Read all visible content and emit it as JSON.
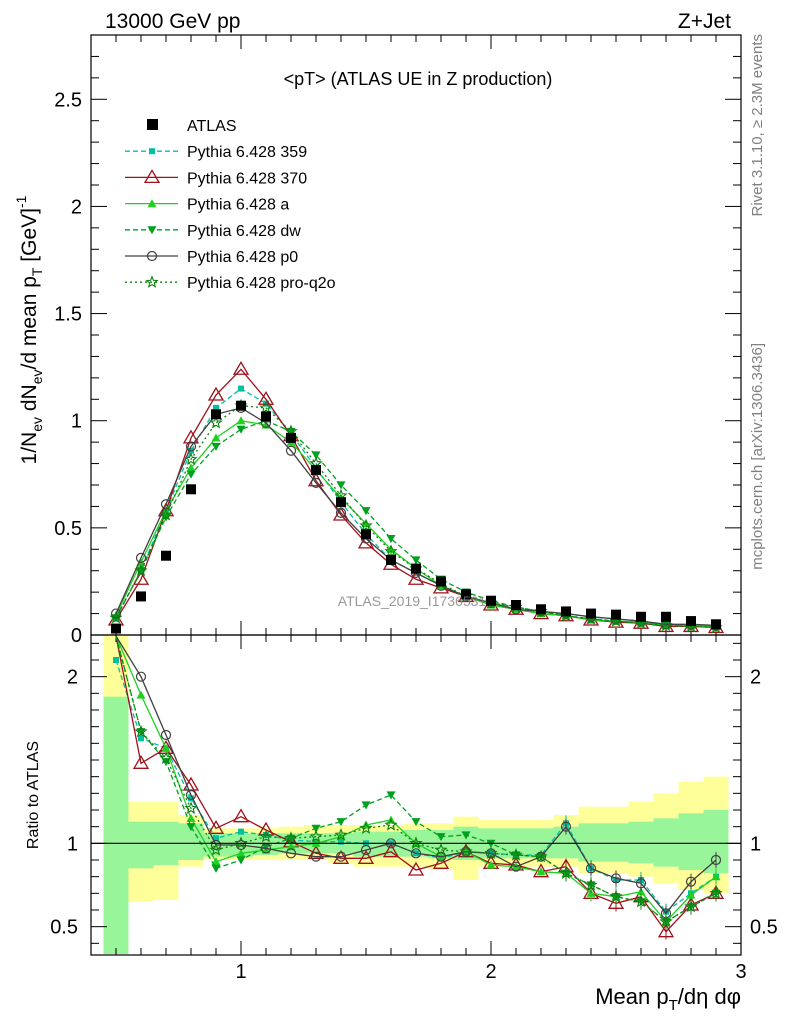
{
  "header": {
    "left": "13000 GeV pp",
    "right": "Z+Jet"
  },
  "side_text": {
    "rivet": "Rivet 3.1.10, ≥ 2.3M events",
    "mcplots": "mcplots.cern.ch [arXiv:1306.3436]"
  },
  "chart_data": {
    "type": "line",
    "title": "<pT> (ATLAS UE in Z production)",
    "watermark": "ATLAS_2019_I1736531",
    "x": [
      0.5,
      0.6,
      0.7,
      0.8,
      0.9,
      1.0,
      1.1,
      1.2,
      1.3,
      1.4,
      1.5,
      1.6,
      1.7,
      1.8,
      1.9,
      2.0,
      2.1,
      2.2,
      2.3,
      2.4,
      2.5,
      2.6,
      2.7,
      2.8,
      2.9
    ],
    "xlim": [
      0.4,
      3.0
    ],
    "xlabel": "Mean p_T/dη dφ",
    "xticks": [
      "1",
      "2",
      "3"
    ],
    "main": {
      "ylabel": "1/N_ev dN_ev/d mean p_T [GeV]^-1",
      "ylim": [
        0,
        2.8
      ],
      "yticks": [
        "0",
        "0.5",
        "1",
        "1.5",
        "2",
        "2.5"
      ],
      "data": {
        "name": "ATLAS",
        "values": [
          0.03,
          0.18,
          0.37,
          0.68,
          1.03,
          1.07,
          1.02,
          0.92,
          0.77,
          0.62,
          0.47,
          0.35,
          0.31,
          0.25,
          0.19,
          0.16,
          0.14,
          0.12,
          0.11,
          0.1,
          0.095,
          0.085,
          0.085,
          0.065,
          0.05
        ]
      },
      "series": [
        {
          "name": "Pythia 6.428 359",
          "color": "#00c0a0",
          "dash": "5,3",
          "marker": "square",
          "values": [
            0.08,
            0.3,
            0.58,
            0.86,
            1.06,
            1.15,
            1.08,
            0.94,
            0.78,
            0.62,
            0.47,
            0.35,
            0.29,
            0.23,
            0.18,
            0.15,
            0.13,
            0.11,
            0.1,
            0.085,
            0.075,
            0.065,
            0.05,
            0.045,
            0.04
          ]
        },
        {
          "name": "Pythia 6.428 370",
          "color": "#a0101a",
          "dash": "",
          "marker": "triangle-open",
          "values": [
            0.07,
            0.26,
            0.58,
            0.92,
            1.12,
            1.24,
            1.1,
            0.93,
            0.72,
            0.56,
            0.43,
            0.33,
            0.26,
            0.22,
            0.18,
            0.14,
            0.12,
            0.1,
            0.09,
            0.07,
            0.06,
            0.055,
            0.04,
            0.04,
            0.035
          ]
        },
        {
          "name": "Pythia 6.428 a",
          "color": "#20d020",
          "dash": "",
          "marker": "triangle",
          "values": [
            0.09,
            0.34,
            0.58,
            0.78,
            0.92,
            1.0,
            0.98,
            0.9,
            0.77,
            0.64,
            0.52,
            0.4,
            0.31,
            0.23,
            0.18,
            0.14,
            0.12,
            0.1,
            0.09,
            0.07,
            0.065,
            0.06,
            0.045,
            0.045,
            0.04
          ]
        },
        {
          "name": "Pythia 6.428 dw",
          "color": "#00a020",
          "dash": "5,3",
          "marker": "triangle-down",
          "values": [
            0.08,
            0.3,
            0.55,
            0.75,
            0.88,
            0.96,
            1.0,
            0.95,
            0.84,
            0.7,
            0.58,
            0.45,
            0.35,
            0.26,
            0.2,
            0.16,
            0.13,
            0.11,
            0.09,
            0.075,
            0.065,
            0.055,
            0.045,
            0.04,
            0.035
          ]
        },
        {
          "name": "Pythia 6.428 p0",
          "color": "#404040",
          "dash": "",
          "marker": "circle-open",
          "values": [
            0.1,
            0.36,
            0.61,
            0.88,
            1.03,
            1.06,
            0.99,
            0.86,
            0.71,
            0.57,
            0.45,
            0.35,
            0.29,
            0.23,
            0.18,
            0.15,
            0.12,
            0.11,
            0.1,
            0.085,
            0.075,
            0.065,
            0.05,
            0.05,
            0.045
          ]
        },
        {
          "name": "Pythia 6.428 pro-q2o",
          "color": "#108010",
          "dash": "2,3",
          "marker": "star",
          "values": [
            0.08,
            0.3,
            0.56,
            0.82,
            0.99,
            1.07,
            1.06,
            0.95,
            0.8,
            0.65,
            0.51,
            0.39,
            0.31,
            0.24,
            0.18,
            0.15,
            0.13,
            0.11,
            0.09,
            0.075,
            0.065,
            0.055,
            0.045,
            0.04,
            0.035
          ]
        }
      ]
    },
    "ratio": {
      "ylabel": "Ratio to ATLAS",
      "ylim": [
        0.33,
        2.25
      ],
      "yticks": [
        "0.5",
        "1",
        "2"
      ],
      "band_inner": [
        [
          0.1,
          1.88
        ],
        [
          0.85,
          1.13
        ],
        [
          0.87,
          1.13
        ],
        [
          0.9,
          1.12
        ],
        [
          0.92,
          1.06
        ],
        [
          0.92,
          1.06
        ],
        [
          0.93,
          1.06
        ],
        [
          0.94,
          1.06
        ],
        [
          0.94,
          1.06
        ],
        [
          0.94,
          1.06
        ],
        [
          0.92,
          1.07
        ],
        [
          0.92,
          1.07
        ],
        [
          0.92,
          1.08
        ],
        [
          0.91,
          1.08
        ],
        [
          0.9,
          1.1
        ],
        [
          0.91,
          1.09
        ],
        [
          0.91,
          1.09
        ],
        [
          0.91,
          1.09
        ],
        [
          0.91,
          1.1
        ],
        [
          0.89,
          1.12
        ],
        [
          0.89,
          1.12
        ],
        [
          0.88,
          1.13
        ],
        [
          0.86,
          1.15
        ],
        [
          0.84,
          1.18
        ],
        [
          0.82,
          1.2
        ]
      ],
      "band_outer": [
        [
          0.1,
          2.3
        ],
        [
          0.65,
          1.25
        ],
        [
          0.66,
          1.25
        ],
        [
          0.86,
          1.17
        ],
        [
          0.9,
          1.09
        ],
        [
          0.9,
          1.09
        ],
        [
          0.9,
          1.09
        ],
        [
          0.9,
          1.1
        ],
        [
          0.9,
          1.11
        ],
        [
          0.88,
          1.11
        ],
        [
          0.86,
          1.11
        ],
        [
          0.86,
          1.11
        ],
        [
          0.86,
          1.12
        ],
        [
          0.84,
          1.12
        ],
        [
          0.78,
          1.16
        ],
        [
          0.86,
          1.14
        ],
        [
          0.86,
          1.14
        ],
        [
          0.86,
          1.14
        ],
        [
          0.86,
          1.17
        ],
        [
          0.82,
          1.22
        ],
        [
          0.82,
          1.22
        ],
        [
          0.8,
          1.25
        ],
        [
          0.76,
          1.3
        ],
        [
          0.72,
          1.37
        ],
        [
          0.7,
          1.4
        ]
      ],
      "series": [
        [
          2.1,
          1.63,
          1.57,
          1.27,
          1.03,
          1.07,
          1.05,
          1.02,
          1.01,
          1.01,
          1.0,
          1.0,
          0.94,
          0.91,
          0.95,
          0.94,
          0.93,
          0.93,
          1.12,
          0.85,
          0.78,
          0.78,
          0.59,
          0.7,
          0.8
        ],
        [
          2.25,
          1.48,
          1.57,
          1.35,
          1.09,
          1.16,
          1.08,
          1.01,
          0.94,
          0.91,
          0.91,
          0.95,
          0.84,
          0.88,
          0.95,
          0.88,
          0.87,
          0.83,
          0.86,
          0.7,
          0.64,
          0.68,
          0.47,
          0.63,
          0.7
        ],
        [
          2.7,
          1.89,
          1.57,
          1.15,
          0.89,
          0.94,
          0.96,
          0.98,
          1.0,
          1.04,
          1.11,
          1.14,
          1.0,
          0.92,
          0.95,
          0.87,
          0.86,
          0.83,
          0.82,
          0.7,
          0.68,
          0.71,
          0.53,
          0.69,
          0.8
        ],
        [
          2.4,
          1.67,
          1.49,
          1.1,
          0.85,
          0.9,
          0.98,
          1.03,
          1.09,
          1.13,
          1.23,
          1.29,
          1.13,
          1.04,
          1.05,
          1.0,
          0.93,
          0.92,
          0.82,
          0.75,
          0.68,
          0.65,
          0.53,
          0.62,
          0.7
        ],
        [
          3.3,
          2.0,
          1.65,
          1.29,
          0.99,
          0.99,
          0.97,
          0.94,
          0.92,
          0.92,
          0.96,
          1.0,
          0.94,
          0.92,
          0.95,
          0.94,
          0.86,
          0.92,
          1.1,
          0.85,
          0.79,
          0.76,
          0.58,
          0.77,
          0.9
        ],
        [
          2.7,
          1.67,
          1.51,
          1.21,
          0.96,
          1.0,
          1.04,
          1.03,
          1.04,
          1.05,
          1.09,
          1.11,
          1.0,
          0.96,
          0.95,
          0.94,
          0.93,
          0.92,
          0.82,
          0.75,
          0.68,
          0.65,
          0.53,
          0.62,
          0.7
        ]
      ]
    }
  }
}
